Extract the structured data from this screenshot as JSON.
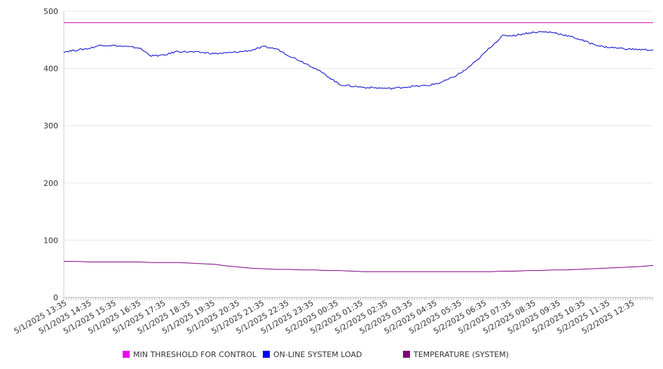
{
  "chart_data": {
    "type": "line",
    "title": "",
    "xlabel": "",
    "ylabel": "",
    "ylim": [
      0,
      500
    ],
    "yticks": [
      "0",
      "100",
      "200",
      "300",
      "400",
      "500"
    ],
    "grid": true,
    "legend_position": "bottom",
    "x_tick_labels": [
      "5/1/2025 13:35",
      "5/1/2025 14:35",
      "5/1/2025 15:35",
      "5/1/2025 16:35",
      "5/1/2025 17:35",
      "5/1/2025 18:35",
      "5/1/2025 19:35",
      "5/1/2025 20:35",
      "5/1/2025 21:35",
      "5/1/2025 22:35",
      "5/1/2025 23:35",
      "5/2/2025 00:35",
      "5/2/2025 01:35",
      "5/2/2025 02:35",
      "5/2/2025 03:35",
      "5/2/2025 04:35",
      "5/2/2025 05:35",
      "5/2/2025 06:35",
      "5/2/2025 07:35",
      "5/2/2025 08:35",
      "5/2/2025 09:35",
      "5/2/2025 10:35",
      "5/2/2025 11:35",
      "5/2/2025 12:35"
    ],
    "x": [
      "5/1/2025 13:35",
      "5/1/2025 14:05",
      "5/1/2025 14:35",
      "5/1/2025 15:05",
      "5/1/2025 15:35",
      "5/1/2025 16:05",
      "5/1/2025 16:35",
      "5/1/2025 17:05",
      "5/1/2025 17:35",
      "5/1/2025 18:05",
      "5/1/2025 18:35",
      "5/1/2025 19:05",
      "5/1/2025 19:35",
      "5/1/2025 20:05",
      "5/1/2025 20:35",
      "5/1/2025 21:05",
      "5/1/2025 21:35",
      "5/1/2025 22:05",
      "5/1/2025 22:35",
      "5/1/2025 23:05",
      "5/1/2025 23:35",
      "5/2/2025 00:05",
      "5/2/2025 00:35",
      "5/2/2025 01:05",
      "5/2/2025 01:35",
      "5/2/2025 02:05",
      "5/2/2025 02:35",
      "5/2/2025 03:05",
      "5/2/2025 03:35",
      "5/2/2025 04:05",
      "5/2/2025 04:35",
      "5/2/2025 05:05",
      "5/2/2025 05:35",
      "5/2/2025 06:05",
      "5/2/2025 06:35",
      "5/2/2025 07:05",
      "5/2/2025 07:35",
      "5/2/2025 08:05",
      "5/2/2025 08:35",
      "5/2/2025 09:05",
      "5/2/2025 09:35",
      "5/2/2025 10:05",
      "5/2/2025 10:35",
      "5/2/2025 11:05",
      "5/2/2025 11:35",
      "5/2/2025 12:05",
      "5/2/2025 12:35",
      "5/2/2025 13:05"
    ],
    "series": [
      {
        "name": "MIN THRESHOLD FOR CONTROL",
        "color": "#cc00cc",
        "legend_swatch": "#ee00ee",
        "values": [
          480,
          480,
          480,
          480,
          480,
          480,
          480,
          480,
          480,
          480,
          480,
          480,
          480,
          480,
          480,
          480,
          480,
          480,
          480,
          480,
          480,
          480,
          480,
          480,
          480,
          480,
          480,
          480,
          480,
          480,
          480,
          480,
          480,
          480,
          480,
          480,
          480,
          480,
          480,
          480,
          480,
          480,
          480,
          480,
          480,
          480,
          480,
          480
        ]
      },
      {
        "name": "ON-LINE SYSTEM LOAD",
        "color": "#0000cc",
        "legend_swatch": "#0000ee",
        "values": [
          429,
          432,
          435,
          441,
          440,
          438,
          436,
          422,
          423,
          430,
          429,
          428,
          426,
          427,
          429,
          432,
          438,
          434,
          422,
          412,
          401,
          387,
          372,
          369,
          367,
          366,
          365,
          367,
          369,
          370,
          375,
          384,
          397,
          415,
          437,
          457,
          458,
          462,
          464,
          463,
          458,
          452,
          444,
          438,
          436,
          434,
          433,
          432
        ]
      },
      {
        "name": "TEMPERATURE (SYSTEM)",
        "color": "#800080",
        "legend_swatch": "#800080",
        "values": [
          63,
          63,
          62,
          62,
          62,
          62,
          62,
          61,
          61,
          61,
          60,
          59,
          58,
          55,
          53,
          51,
          50,
          49,
          49,
          48,
          48,
          47,
          47,
          46,
          45,
          45,
          45,
          45,
          45,
          45,
          45,
          45,
          45,
          45,
          45,
          46,
          46,
          47,
          47,
          48,
          48,
          49,
          50,
          51,
          52,
          53,
          54,
          56
        ]
      }
    ]
  }
}
